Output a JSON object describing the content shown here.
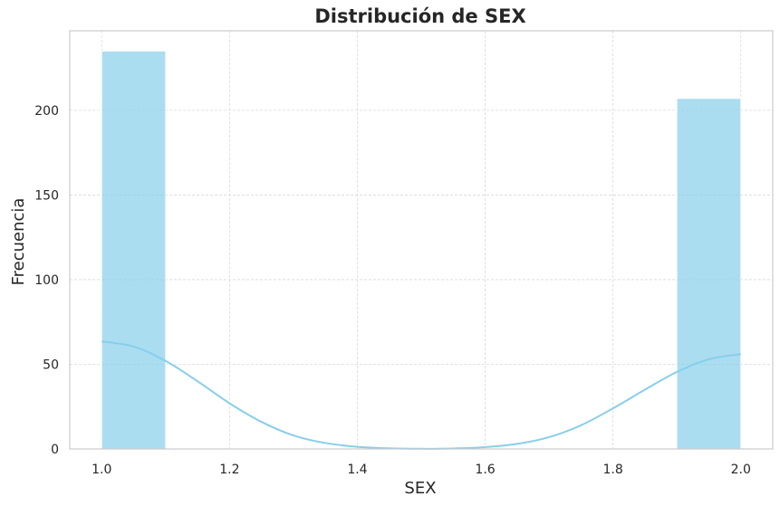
{
  "chart_data": {
    "type": "bar",
    "title": "Distribución de SEX",
    "xlabel": "SEX",
    "ylabel": "Frecuencia",
    "xlim": [
      0.95,
      2.05
    ],
    "ylim": [
      0,
      247
    ],
    "x_ticks": [
      "1.0",
      "1.2",
      "1.4",
      "1.6",
      "1.8",
      "2.0"
    ],
    "x_tick_values": [
      1.0,
      1.2,
      1.4,
      1.6,
      1.8,
      2.0
    ],
    "y_ticks": [
      "0",
      "50",
      "100",
      "150",
      "200"
    ],
    "y_tick_values": [
      0,
      50,
      100,
      150,
      200
    ],
    "bins": [
      {
        "x0": 1.0,
        "x1": 1.1,
        "count": 235
      },
      {
        "x0": 1.9,
        "x1": 2.0,
        "count": 207
      }
    ],
    "kde": {
      "x": [
        1.0,
        1.05,
        1.1,
        1.15,
        1.2,
        1.25,
        1.3,
        1.35,
        1.4,
        1.45,
        1.5,
        1.55,
        1.6,
        1.65,
        1.7,
        1.75,
        1.8,
        1.85,
        1.9,
        1.95,
        2.0
      ],
      "y": [
        63.5,
        60.5,
        52.0,
        40.0,
        27.0,
        16.0,
        8.0,
        3.5,
        1.3,
        0.4,
        0.1,
        0.3,
        1.1,
        3.0,
        7.0,
        14.0,
        24.0,
        35.0,
        45.5,
        53.0,
        56.0
      ]
    },
    "grid": true,
    "colors": {
      "bar": "#87CEEB",
      "kde": "#87CEEB",
      "grid": "#d9d9d9",
      "spine": "#cccccc",
      "text": "#262626"
    }
  }
}
